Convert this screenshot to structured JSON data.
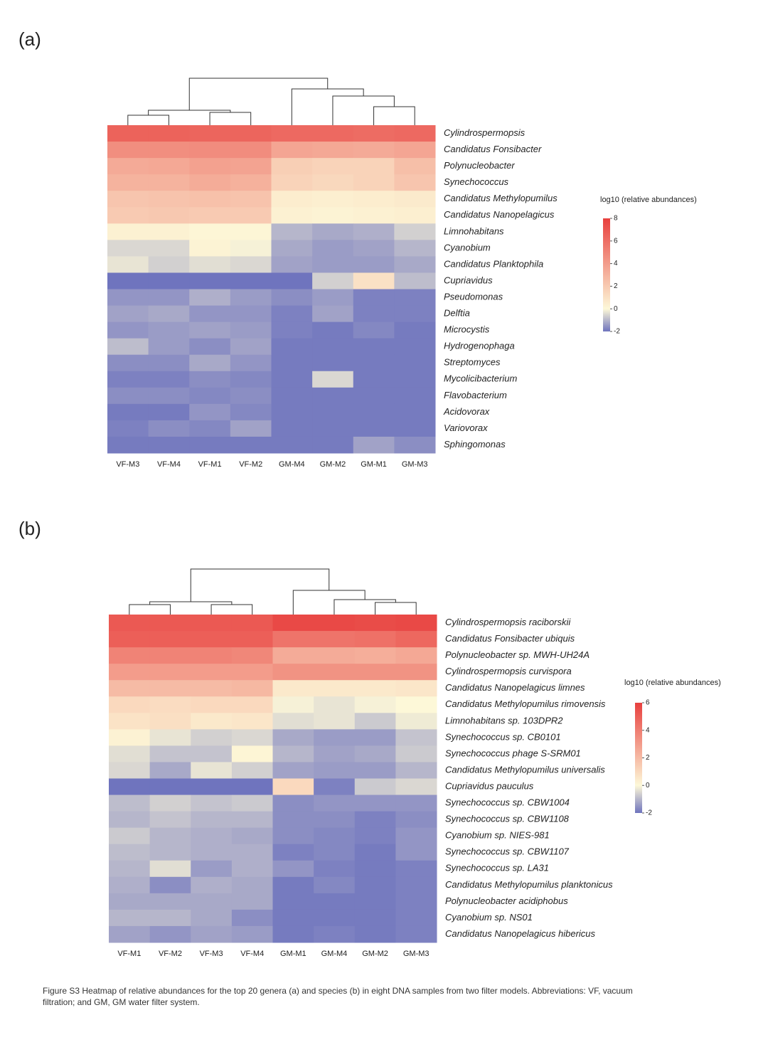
{
  "chart_data": [
    {
      "type": "heatmap",
      "panel": "(a)",
      "columns": [
        "VF-M3",
        "VF-M4",
        "VF-M1",
        "VF-M2",
        "GM-M4",
        "GM-M2",
        "GM-M1",
        "GM-M3"
      ],
      "rows": [
        "Cylindrospermopsis",
        "Candidatus Fonsibacter",
        "Polynucleobacter",
        "Synechococcus",
        "Candidatus Methylopumilus",
        "Candidatus Nanopelagicus",
        "Limnohabitans",
        "Cyanobium",
        "Candidatus Planktophila",
        "Cupriavidus",
        "Pseudomonas",
        "Delftia",
        "Microcystis",
        "Hydrogenophaga",
        "Streptomyces",
        "Mycolicibacterium",
        "Flavobacterium",
        "Acidovorax",
        "Variovorax",
        "Sphingomonas"
      ],
      "values": [
        [
          6.5,
          6.5,
          6.4,
          6.4,
          6.2,
          6.2,
          6.1,
          6.2
        ],
        [
          4.6,
          4.6,
          4.7,
          4.7,
          3.6,
          3.5,
          3.4,
          3.6
        ],
        [
          3.4,
          3.5,
          3.8,
          3.7,
          1.8,
          1.6,
          1.6,
          2.5
        ],
        [
          3.0,
          3.0,
          3.3,
          3.1,
          1.6,
          1.4,
          1.6,
          2.2
        ],
        [
          2.2,
          2.3,
          2.4,
          2.3,
          0.5,
          0.4,
          0.5,
          0.6
        ],
        [
          2.0,
          2.1,
          2.0,
          2.0,
          0.3,
          0.2,
          0.3,
          0.4
        ],
        [
          0.3,
          0.3,
          0.1,
          0.1,
          -1.0,
          -1.2,
          -1.1,
          -0.6
        ],
        [
          -0.5,
          -0.5,
          0.2,
          -0.1,
          -1.2,
          -1.4,
          -1.3,
          -1.0
        ],
        [
          -0.3,
          -0.6,
          -0.4,
          -0.5,
          -1.3,
          -1.4,
          -1.4,
          -1.2
        ],
        [
          -2.0,
          -2.0,
          -2.0,
          -2.0,
          -2.0,
          -0.6,
          1.0,
          -0.9
        ],
        [
          -1.5,
          -1.5,
          -1.1,
          -1.4,
          -1.6,
          -1.4,
          -1.8,
          -1.8
        ],
        [
          -1.3,
          -1.2,
          -1.5,
          -1.5,
          -1.8,
          -1.3,
          -1.8,
          -1.8
        ],
        [
          -1.5,
          -1.4,
          -1.3,
          -1.4,
          -1.8,
          -1.9,
          -1.7,
          -1.9
        ],
        [
          -0.9,
          -1.4,
          -1.6,
          -1.3,
          -1.9,
          -1.9,
          -1.9,
          -1.9
        ],
        [
          -1.6,
          -1.6,
          -1.2,
          -1.5,
          -1.9,
          -1.9,
          -1.9,
          -1.9
        ],
        [
          -1.8,
          -1.8,
          -1.6,
          -1.7,
          -1.9,
          -0.5,
          -1.9,
          -1.9
        ],
        [
          -1.6,
          -1.6,
          -1.7,
          -1.6,
          -1.9,
          -1.9,
          -1.9,
          -1.9
        ],
        [
          -1.9,
          -1.9,
          -1.5,
          -1.7,
          -1.9,
          -1.9,
          -1.9,
          -1.9
        ],
        [
          -1.8,
          -1.6,
          -1.7,
          -1.3,
          -1.9,
          -1.9,
          -1.9,
          -1.9
        ],
        [
          -1.9,
          -1.9,
          -1.9,
          -1.9,
          -1.9,
          -1.9,
          -1.3,
          -1.6
        ]
      ],
      "colorbar_title": "log10 (relative abundances)",
      "clim": [
        -2,
        8
      ],
      "cticks": [
        -2,
        0,
        2,
        4,
        6,
        8
      ],
      "colors": [
        "#6f74be",
        "#fdf8d8",
        "#e8403e"
      ]
    },
    {
      "type": "heatmap",
      "panel": "(b)",
      "columns": [
        "VF-M1",
        "VF-M2",
        "VF-M3",
        "VF-M4",
        "GM-M1",
        "GM-M4",
        "GM-M2",
        "GM-M3"
      ],
      "rows": [
        "Cylindrospermopsis raciborskii",
        "Candidatus Fonsibacter ubiquis",
        "Polynucleobacter sp. MWH-UH24A",
        "Cylindrospermopsis curvispora",
        "Candidatus Nanopelagicus limnes",
        "Candidatus Methylopumilus rimovensis",
        "Limnohabitans sp. 103DPR2",
        "Synechococcus sp. CB0101",
        "Synechococcus phage S-SRM01",
        "Candidatus Methylopumilus universalis",
        "Cupriavidus pauculus",
        "Synechococcus sp. CBW1004",
        "Synechococcus sp. CBW1108",
        "Cyanobium sp. NIES-981",
        "Synechococcus sp. CBW1107",
        "Synechococcus sp. LA31",
        "Candidatus Methylopumilus planktonicus",
        "Polynucleobacter acidiphobus",
        "Cyanobium sp. NS01",
        "Candidatus Nanopelagicus hibericus"
      ],
      "values": [
        [
          5.2,
          5.2,
          5.2,
          5.2,
          5.7,
          5.7,
          5.6,
          5.7
        ],
        [
          5.0,
          5.0,
          5.0,
          5.0,
          4.3,
          4.3,
          4.4,
          4.7
        ],
        [
          3.8,
          3.8,
          3.8,
          3.7,
          2.5,
          2.5,
          2.4,
          2.6
        ],
        [
          3.0,
          3.0,
          3.0,
          3.0,
          3.3,
          3.3,
          3.3,
          3.3
        ],
        [
          2.0,
          2.0,
          2.0,
          2.1,
          0.5,
          0.5,
          0.5,
          0.6
        ],
        [
          1.0,
          0.9,
          1.0,
          1.0,
          -0.1,
          -0.3,
          -0.1,
          0.0
        ],
        [
          0.7,
          0.8,
          0.5,
          0.6,
          -0.4,
          -0.3,
          -0.7,
          -0.2
        ],
        [
          0.2,
          -0.3,
          -0.6,
          -0.5,
          -1.2,
          -1.4,
          -1.4,
          -0.8
        ],
        [
          -0.4,
          -0.8,
          -0.8,
          0.1,
          -1.0,
          -1.3,
          -1.2,
          -0.7
        ],
        [
          -0.5,
          -1.2,
          -0.3,
          -0.6,
          -1.3,
          -1.4,
          -1.4,
          -1.0
        ],
        [
          -2.0,
          -2.0,
          -2.0,
          -2.0,
          1.0,
          -1.8,
          -0.7,
          -0.5
        ],
        [
          -0.9,
          -0.6,
          -0.8,
          -0.7,
          -1.6,
          -1.5,
          -1.5,
          -1.5
        ],
        [
          -1.0,
          -0.8,
          -1.0,
          -1.0,
          -1.6,
          -1.6,
          -1.8,
          -1.6
        ],
        [
          -0.7,
          -1.0,
          -1.1,
          -1.2,
          -1.6,
          -1.7,
          -1.8,
          -1.5
        ],
        [
          -0.9,
          -1.0,
          -1.1,
          -1.1,
          -1.8,
          -1.7,
          -1.9,
          -1.5
        ],
        [
          -1.0,
          -0.4,
          -1.4,
          -1.1,
          -1.5,
          -1.8,
          -1.9,
          -1.8
        ],
        [
          -1.1,
          -1.6,
          -1.1,
          -1.2,
          -1.9,
          -1.7,
          -1.9,
          -1.8
        ],
        [
          -1.2,
          -1.2,
          -1.2,
          -1.2,
          -1.9,
          -1.9,
          -1.9,
          -1.8
        ],
        [
          -1.0,
          -1.0,
          -1.2,
          -1.6,
          -1.9,
          -1.9,
          -1.9,
          -1.8
        ],
        [
          -1.3,
          -1.5,
          -1.3,
          -1.4,
          -1.9,
          -1.8,
          -1.9,
          -1.8
        ]
      ],
      "colorbar_title": "log10 (relative abundances)",
      "clim": [
        -2,
        6
      ],
      "cticks": [
        -2,
        0,
        2,
        4,
        6
      ],
      "colors": [
        "#6f74be",
        "#fdf8d8",
        "#e8403e"
      ]
    }
  ],
  "caption": "Figure S3 Heatmap of relative abundances for the top 20 genera (a) and species (b) in eight DNA samples from two filter models. Abbreviations: VF, vacuum filtration; and GM, GM water filter system."
}
